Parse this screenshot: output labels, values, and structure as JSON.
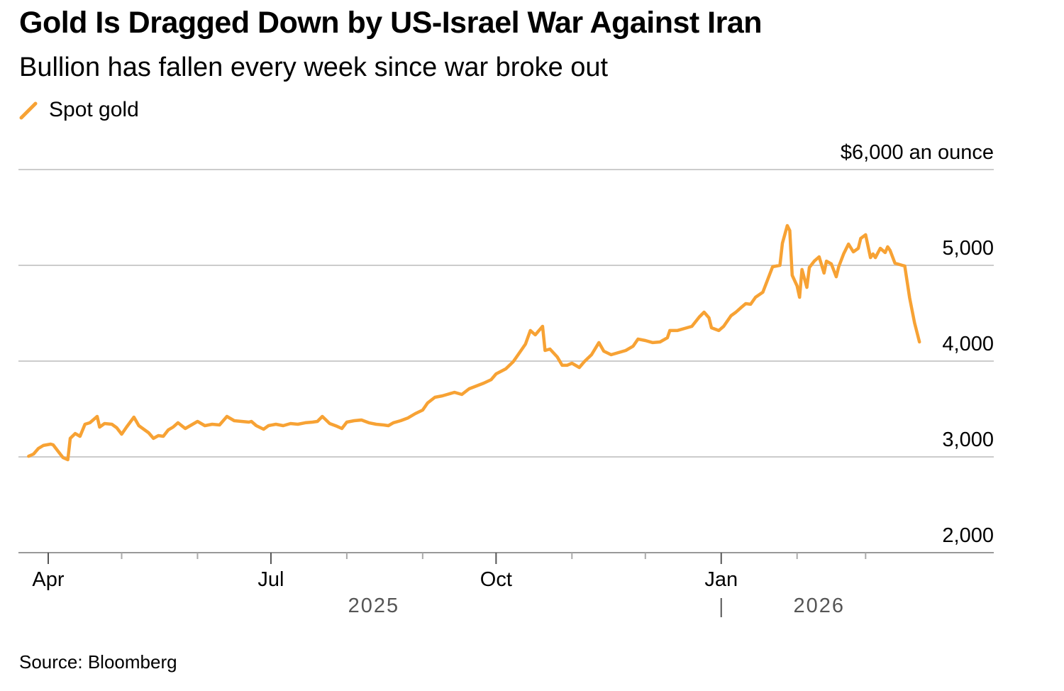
{
  "chart_data": {
    "type": "line",
    "title": "Gold Is Dragged Down by US-Israel War Against Iran",
    "subtitle": "Bullion has fallen every week since war broke out",
    "legend": [
      {
        "name": "Spot gold",
        "color": "#F7A234"
      }
    ],
    "legend_placement": "top-left",
    "ylabel": "$6,000 an ounce",
    "ylim": [
      2000,
      6000
    ],
    "yticks": [
      {
        "value": 6000,
        "label": "$6,000 an ounce"
      },
      {
        "value": 5000,
        "label": "5,000"
      },
      {
        "value": 4000,
        "label": "4,000"
      },
      {
        "value": 3000,
        "label": "3,000"
      },
      {
        "value": 2000,
        "label": "2,000"
      }
    ],
    "x_unit": "days since 2025-04-01",
    "xlim": [
      -12,
      386
    ],
    "xticks": [
      {
        "day": 0,
        "label": "Apr"
      },
      {
        "day": 91,
        "label": "Jul"
      },
      {
        "day": 183,
        "label": "Oct"
      },
      {
        "day": 275,
        "label": "Jan"
      }
    ],
    "minor_xticks": [
      30,
      61,
      122,
      153,
      214,
      244,
      306,
      334
    ],
    "years": [
      {
        "label": "2025",
        "day": 133
      },
      {
        "label": "2026",
        "day": 315
      }
    ],
    "year_divider_day": 275,
    "grid": true,
    "series": [
      {
        "name": "Spot gold",
        "points": [
          [
            -8,
            3007
          ],
          [
            -6,
            3030
          ],
          [
            -4,
            3089
          ],
          [
            -2,
            3119
          ],
          [
            1,
            3133
          ],
          [
            2,
            3126
          ],
          [
            4,
            3059
          ],
          [
            6,
            2993
          ],
          [
            8,
            2970
          ],
          [
            9,
            3193
          ],
          [
            11,
            3244
          ],
          [
            13,
            3215
          ],
          [
            15,
            3341
          ],
          [
            17,
            3356
          ],
          [
            20,
            3422
          ],
          [
            21,
            3311
          ],
          [
            23,
            3348
          ],
          [
            26,
            3341
          ],
          [
            28,
            3304
          ],
          [
            30,
            3237
          ],
          [
            32,
            3311
          ],
          [
            35,
            3415
          ],
          [
            37,
            3326
          ],
          [
            39,
            3289
          ],
          [
            41,
            3252
          ],
          [
            43,
            3193
          ],
          [
            45,
            3222
          ],
          [
            47,
            3215
          ],
          [
            49,
            3281
          ],
          [
            51,
            3311
          ],
          [
            53,
            3356
          ],
          [
            56,
            3296
          ],
          [
            59,
            3341
          ],
          [
            61,
            3370
          ],
          [
            64,
            3326
          ],
          [
            67,
            3341
          ],
          [
            70,
            3333
          ],
          [
            73,
            3422
          ],
          [
            76,
            3378
          ],
          [
            79,
            3370
          ],
          [
            82,
            3363
          ],
          [
            83,
            3370
          ],
          [
            85,
            3326
          ],
          [
            88,
            3289
          ],
          [
            90,
            3326
          ],
          [
            93,
            3341
          ],
          [
            96,
            3326
          ],
          [
            99,
            3348
          ],
          [
            102,
            3341
          ],
          [
            105,
            3356
          ],
          [
            108,
            3363
          ],
          [
            110,
            3370
          ],
          [
            112,
            3422
          ],
          [
            115,
            3348
          ],
          [
            118,
            3319
          ],
          [
            120,
            3296
          ],
          [
            122,
            3363
          ],
          [
            125,
            3378
          ],
          [
            128,
            3385
          ],
          [
            131,
            3356
          ],
          [
            134,
            3341
          ],
          [
            137,
            3333
          ],
          [
            139,
            3326
          ],
          [
            141,
            3356
          ],
          [
            144,
            3378
          ],
          [
            147,
            3407
          ],
          [
            150,
            3452
          ],
          [
            153,
            3489
          ],
          [
            155,
            3563
          ],
          [
            158,
            3622
          ],
          [
            161,
            3637
          ],
          [
            163,
            3652
          ],
          [
            166,
            3674
          ],
          [
            169,
            3652
          ],
          [
            172,
            3711
          ],
          [
            175,
            3741
          ],
          [
            178,
            3770
          ],
          [
            181,
            3807
          ],
          [
            183,
            3867
          ],
          [
            187,
            3919
          ],
          [
            190,
            3993
          ],
          [
            192,
            4067
          ],
          [
            195,
            4178
          ],
          [
            197,
            4319
          ],
          [
            199,
            4274
          ],
          [
            202,
            4363
          ],
          [
            203,
            4111
          ],
          [
            205,
            4126
          ],
          [
            208,
            4044
          ],
          [
            210,
            3956
          ],
          [
            212,
            3956
          ],
          [
            214,
            3978
          ],
          [
            217,
            3933
          ],
          [
            219,
            3993
          ],
          [
            222,
            4067
          ],
          [
            225,
            4193
          ],
          [
            227,
            4104
          ],
          [
            230,
            4067
          ],
          [
            233,
            4089
          ],
          [
            236,
            4111
          ],
          [
            239,
            4156
          ],
          [
            241,
            4230
          ],
          [
            244,
            4215
          ],
          [
            247,
            4193
          ],
          [
            250,
            4200
          ],
          [
            253,
            4244
          ],
          [
            254,
            4319
          ],
          [
            257,
            4319
          ],
          [
            260,
            4341
          ],
          [
            263,
            4363
          ],
          [
            266,
            4459
          ],
          [
            268,
            4511
          ],
          [
            270,
            4452
          ],
          [
            271,
            4348
          ],
          [
            274,
            4319
          ],
          [
            276,
            4363
          ],
          [
            279,
            4474
          ],
          [
            281,
            4511
          ],
          [
            283,
            4556
          ],
          [
            285,
            4600
          ],
          [
            287,
            4593
          ],
          [
            289,
            4667
          ],
          [
            292,
            4719
          ],
          [
            294,
            4852
          ],
          [
            296,
            4985
          ],
          [
            299,
            5000
          ],
          [
            300,
            5230
          ],
          [
            302,
            5415
          ],
          [
            303,
            5363
          ],
          [
            304,
            4896
          ],
          [
            306,
            4785
          ],
          [
            307,
            4667
          ],
          [
            308,
            4956
          ],
          [
            310,
            4770
          ],
          [
            311,
            4978
          ],
          [
            313,
            5044
          ],
          [
            315,
            5089
          ],
          [
            317,
            4919
          ],
          [
            318,
            5044
          ],
          [
            320,
            5015
          ],
          [
            322,
            4881
          ],
          [
            323,
            4985
          ],
          [
            325,
            5119
          ],
          [
            327,
            5222
          ],
          [
            329,
            5141
          ],
          [
            331,
            5178
          ],
          [
            332,
            5281
          ],
          [
            334,
            5319
          ],
          [
            336,
            5081
          ],
          [
            337,
            5119
          ],
          [
            338,
            5081
          ],
          [
            340,
            5178
          ],
          [
            342,
            5133
          ],
          [
            343,
            5193
          ],
          [
            344,
            5156
          ],
          [
            346,
            5022
          ],
          [
            349,
            5000
          ],
          [
            350,
            4993
          ],
          [
            352,
            4659
          ],
          [
            354,
            4400
          ],
          [
            356,
            4200
          ]
        ]
      }
    ],
    "source": "Source: Bloomberg"
  }
}
